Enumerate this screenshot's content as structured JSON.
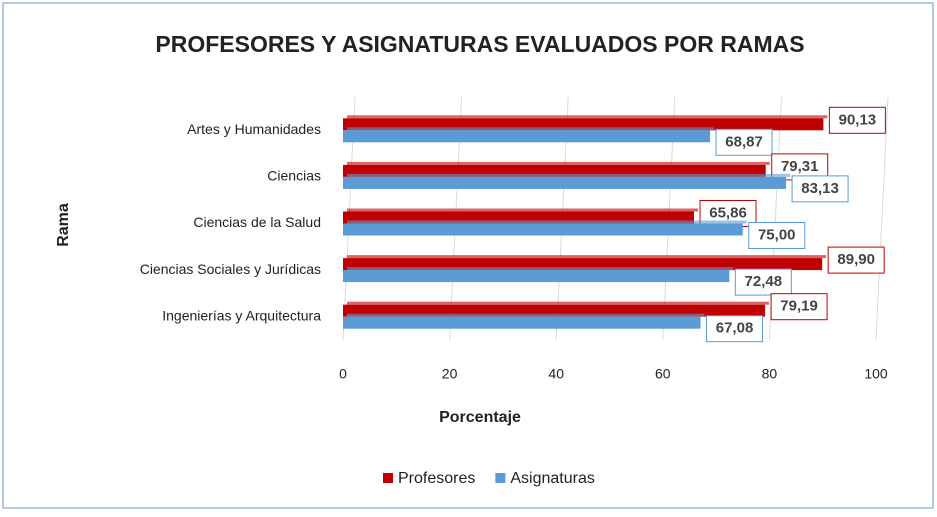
{
  "chart_data": {
    "type": "hbar",
    "title": "PROFESORES Y ASIGNATURAS EVALUADOS POR RAMAS",
    "xlabel": "Porcentaje",
    "ylabel": "Rama",
    "categories": [
      "Artes y Humanidades",
      "Ciencias",
      "Ciencias de la Salud",
      "Ciencias Sociales y Jurídicas",
      "Ingenierías y Arquitectura"
    ],
    "series": [
      {
        "name": "Profesores",
        "color": "#c00000",
        "values": [
          90.13,
          79.31,
          65.86,
          89.9,
          79.19
        ],
        "value_labels": [
          "90,13",
          "79,31",
          "65,86",
          "89,90",
          "79,19"
        ]
      },
      {
        "name": "Asignaturas",
        "color": "#5b9bd5",
        "values": [
          68.87,
          83.13,
          75.0,
          72.48,
          67.08
        ],
        "value_labels": [
          "68,87",
          "83,13",
          "75,00",
          "72,48",
          "67,08"
        ]
      }
    ],
    "xlim": [
      0,
      100
    ],
    "xticks": [
      0,
      20,
      40,
      60,
      80,
      100
    ],
    "grid": true,
    "legend": "bottom"
  }
}
